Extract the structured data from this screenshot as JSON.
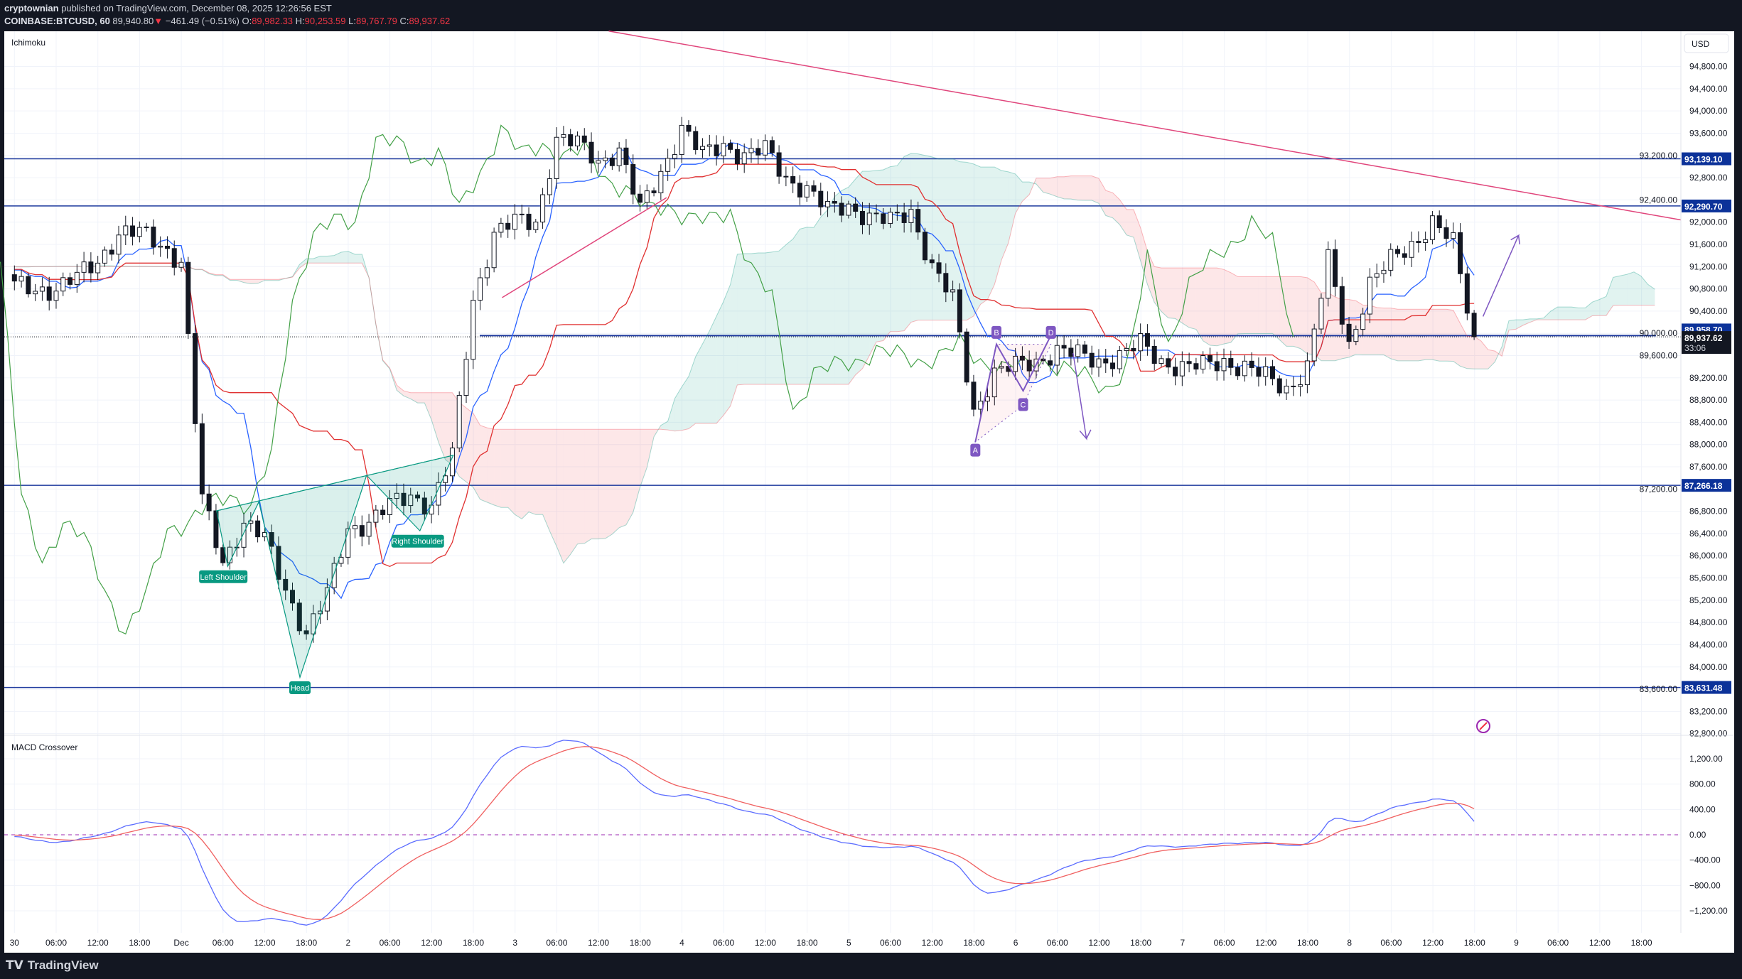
{
  "header": {
    "author": "cryptownian",
    "published": "published on TradingView.com, December 08, 2025 12:26:56 EST",
    "symbol": "COINBASE:BTCUSD, 60",
    "last": "89,940.80",
    "change": "−461.49 (−0.51%)",
    "o_label": "O:",
    "o": "89,982.33",
    "h_label": "H:",
    "h": "90,253.59",
    "l_label": "L:",
    "l": "89,767.79",
    "c_label": "C:",
    "c": "89,937.62"
  },
  "panes": {
    "main_indicator": "Ichimoku",
    "sub_indicator": "MACD Crossover",
    "currency": "USD"
  },
  "footer": {
    "brand": "TradingView"
  },
  "colors": {
    "up_body": "#ffffff",
    "down_body": "#131722",
    "tenkan": "#2962ff",
    "kijun": "#e03030",
    "chikou": "#43a047",
    "cloud_up": "#089981",
    "cloud_down": "#f23645",
    "level": "#1e3a9e",
    "badge": "#0c3299",
    "trendline": "#e0457b",
    "pattern": "#089981",
    "abcd": "#7e57c2",
    "macd": "#5b6cff",
    "signal": "#f06060"
  },
  "chart_data": {
    "type": "candlestick",
    "interval": "60",
    "series_start": "Nov 30 00:00",
    "anchor_step_hours": 3,
    "close_anchors": [
      90850,
      90800,
      90800,
      91000,
      91300,
      91800,
      91800,
      91600,
      91300,
      87000,
      85900,
      86600,
      86300,
      85400,
      84600,
      85300,
      86500,
      86600,
      86900,
      87100,
      86900,
      87800,
      90600,
      91800,
      92000,
      92000,
      93500,
      93400,
      93100,
      93300,
      92200,
      92900,
      93700,
      93200,
      93400,
      93200,
      93300,
      92800,
      92600,
      92200,
      92300,
      92100,
      92000,
      92200,
      91200,
      90600,
      88600,
      89300,
      89400,
      89500,
      89700,
      89600,
      89500,
      89600,
      89800,
      89500,
      89400,
      89400,
      89500,
      89400,
      89200,
      89000,
      89400,
      91300,
      89800,
      90900,
      91300,
      91600,
      92000,
      91600,
      89940
    ],
    "ylim": [
      82800,
      94800
    ],
    "price_ticks": [
      "94,800.00",
      "94,400.00",
      "94,000.00",
      "93,600.00",
      "93,200.00",
      "92,800.00",
      "92,400.00",
      "92,000.00",
      "91,600.00",
      "91,200.00",
      "90,800.00",
      "90,400.00",
      "90,000.00",
      "89,600.00",
      "89,200.00",
      "88,800.00",
      "88,400.00",
      "88,000.00",
      "87,600.00",
      "87,200.00",
      "86,800.00",
      "86,400.00",
      "86,000.00",
      "85,600.00",
      "85,200.00",
      "84,800.00",
      "84,400.00",
      "84,000.00",
      "83,600.00",
      "83,200.00",
      "82,800.00"
    ],
    "macd_ticks": [
      {
        "v": 1200,
        "t": "1,200.00"
      },
      {
        "v": 800,
        "t": "800.00"
      },
      {
        "v": 400,
        "t": "400.00"
      },
      {
        "v": 0,
        "t": "0.00"
      },
      {
        "v": -400,
        "t": "−400.00"
      },
      {
        "v": -800,
        "t": "−800.00"
      },
      {
        "v": -1200,
        "t": "−1,200.00"
      }
    ],
    "time_ticks": [
      "30",
      "06:00",
      "12:00",
      "18:00",
      "Dec",
      "06:00",
      "12:00",
      "18:00",
      "2",
      "06:00",
      "12:00",
      "18:00",
      "3",
      "06:00",
      "12:00",
      "18:00",
      "4",
      "06:00",
      "12:00",
      "18:00",
      "5",
      "06:00",
      "12:00",
      "18:00",
      "6",
      "06:00",
      "12:00",
      "18:00",
      "7",
      "06:00",
      "12:00",
      "18:00",
      "8",
      "06:00",
      "12:00",
      "18:00",
      "9",
      "06:00",
      "12:00",
      "18:00"
    ],
    "levels": [
      {
        "price": 93139.1,
        "label": "93,139.10"
      },
      {
        "price": 92290.7,
        "label": "92,290.70"
      },
      {
        "price": 87266.18,
        "label": "87,266.18"
      },
      {
        "price": 83631.48,
        "label": "83,631.48"
      }
    ],
    "support_line": {
      "price": 89958.7,
      "label": "89,958.70"
    },
    "current": {
      "price": 89937.62,
      "label": "89,937.62",
      "countdown": "33:06"
    },
    "annotations": {
      "left_shoulder": "Left Shoulder",
      "head": "Head",
      "right_shoulder": "Right Shoulder",
      "a": "A",
      "b": "B",
      "c": "C",
      "d": "D"
    }
  }
}
